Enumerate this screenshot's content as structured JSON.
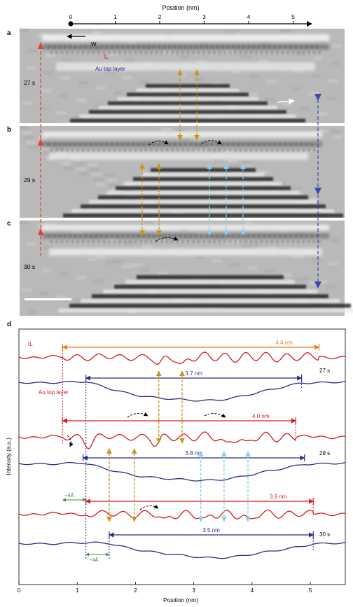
{
  "panel_labels": {
    "a": "a",
    "b": "b",
    "c": "c",
    "d": "d"
  },
  "top_axis": {
    "title": "Position (nm)",
    "ticks": [
      "0",
      "1",
      "2",
      "3",
      "4",
      "5"
    ]
  },
  "panel_a": {
    "time": "27 s",
    "w_label": "W",
    "il_label": "IL",
    "au_label": "Au top layer"
  },
  "panel_b": {
    "time": "29 s"
  },
  "panel_c": {
    "time": "30 s"
  },
  "chart_data": {
    "type": "line",
    "xlabel": "Position (nm)",
    "ylabel": "Intensity (a.u.)",
    "xlim": [
      0,
      5.6
    ],
    "xticks": [
      "0",
      "1",
      "2",
      "3",
      "4",
      "5"
    ],
    "legend": {
      "il": "IL",
      "au": "Au top layer"
    },
    "series": [
      {
        "name": "IL",
        "time": "27 s",
        "span_label": "4.4 nm",
        "span": [
          0.75,
          5.15
        ]
      },
      {
        "name": "Au top layer",
        "time": "27 s",
        "span_label": "3.7 nm",
        "span": [
          1.15,
          4.85
        ]
      },
      {
        "name": "IL",
        "time": "29 s",
        "span_label": "4.0 nm",
        "span": [
          0.75,
          4.75
        ]
      },
      {
        "name": "Au top layer",
        "time": "29 s",
        "span_label": "3.8 nm",
        "span": [
          1.1,
          4.9
        ]
      },
      {
        "name": "IL",
        "time": "30 s",
        "span_label": "3.9 nm",
        "span": [
          1.15,
          5.05
        ]
      },
      {
        "name": "Au top layer",
        "time": "30 s",
        "span_label": "3.5 nm",
        "span": [
          1.55,
          5.05
        ]
      }
    ],
    "shift_labels": [
      "~4Å",
      "~4Å"
    ],
    "times": [
      "27 s",
      "29 s",
      "30 s"
    ]
  },
  "colors": {
    "il": "#d7191c",
    "au": "#2b2b8c",
    "orange": "#f07b1a",
    "gold": "#c8961e",
    "cyan": "#8ccfe8",
    "blue_dash": "#3a48b4",
    "red_dash": "#e04030",
    "green": "#3c8c3c"
  }
}
